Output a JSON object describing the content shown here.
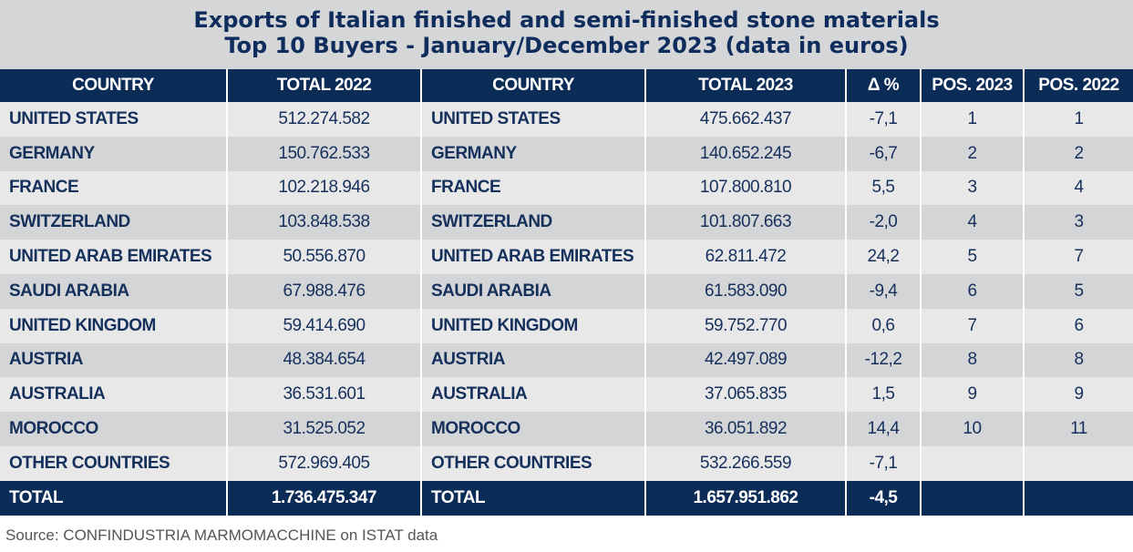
{
  "title": {
    "line1": "Exports of Italian finished and semi-finished stone materials",
    "line2": "Top 10 Buyers - January/December 2023 (data in euros)"
  },
  "headers": [
    "COUNTRY",
    "TOTAL 2022",
    "COUNTRY",
    "TOTAL 2023",
    "Δ %",
    "POS. 2023",
    "POS. 2022"
  ],
  "rows": [
    [
      "UNITED STATES",
      "512.274.582",
      "UNITED STATES",
      "475.662.437",
      "-7,1",
      "1",
      "1"
    ],
    [
      "GERMANY",
      "150.762.533",
      "GERMANY",
      "140.652.245",
      "-6,7",
      "2",
      "2"
    ],
    [
      "FRANCE",
      "102.218.946",
      "FRANCE",
      "107.800.810",
      "5,5",
      "3",
      "4"
    ],
    [
      "SWITZERLAND",
      "103.848.538",
      "SWITZERLAND",
      "101.807.663",
      "-2,0",
      "4",
      "3"
    ],
    [
      "UNITED ARAB EMIRATES",
      "50.556.870",
      "UNITED ARAB EMIRATES",
      "62.811.472",
      "24,2",
      "5",
      "7"
    ],
    [
      "SAUDI ARABIA",
      "67.988.476",
      "SAUDI ARABIA",
      "61.583.090",
      "-9,4",
      "6",
      "5"
    ],
    [
      "UNITED KINGDOM",
      "59.414.690",
      "UNITED KINGDOM",
      "59.752.770",
      "0,6",
      "7",
      "6"
    ],
    [
      "AUSTRIA",
      "48.384.654",
      "AUSTRIA",
      "42.497.089",
      "-12,2",
      "8",
      "8"
    ],
    [
      "AUSTRALIA",
      "36.531.601",
      "AUSTRALIA",
      "37.065.835",
      "1,5",
      "9",
      "9"
    ],
    [
      "MOROCCO",
      "31.525.052",
      "MOROCCO",
      "36.051.892",
      "14,4",
      "10",
      "11"
    ],
    [
      "OTHER COUNTRIES",
      "572.969.405",
      "OTHER COUNTRIES",
      "532.266.559",
      "-7,1",
      "",
      ""
    ]
  ],
  "total": [
    "TOTAL",
    "1.736.475.347",
    "TOTAL",
    "1.657.951.862",
    "-4,5",
    "",
    ""
  ],
  "source": "Source: CONFINDUSTRIA MARMOMACCHINE on ISTAT data"
}
